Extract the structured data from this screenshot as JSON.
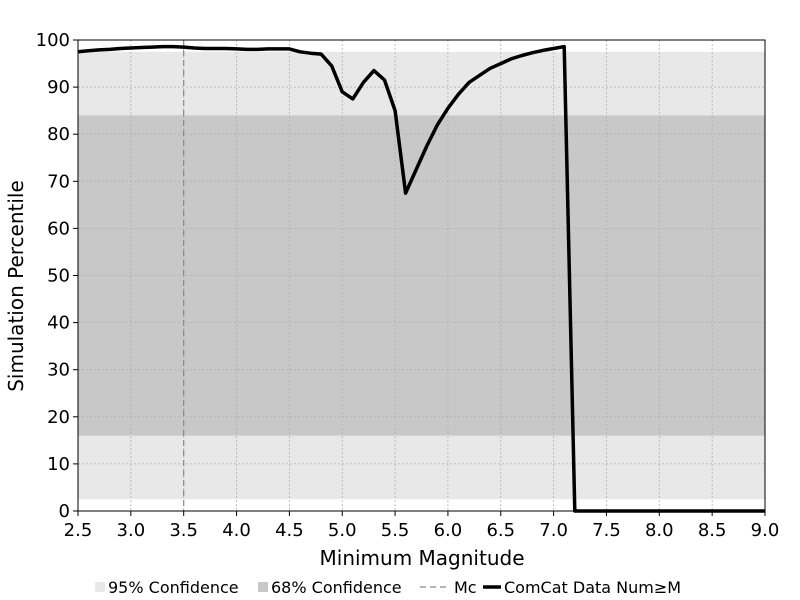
{
  "chart_data": {
    "type": "line",
    "title": "",
    "xlabel": "Minimum Magnitude",
    "ylabel": "Simulation Percentile",
    "xlim": [
      2.5,
      9.0
    ],
    "ylim": [
      0,
      100
    ],
    "xticks": [
      2.5,
      3.0,
      3.5,
      4.0,
      4.5,
      5.0,
      5.5,
      6.0,
      6.5,
      7.0,
      7.5,
      8.0,
      8.5,
      9.0
    ],
    "xtick_labels": [
      "2.5",
      "3.0",
      "3.5",
      "4.0",
      "4.5",
      "5.0",
      "5.5",
      "6.0",
      "6.5",
      "7.0",
      "7.5",
      "8.0",
      "8.5",
      "9.0"
    ],
    "yticks": [
      0,
      10,
      20,
      30,
      40,
      50,
      60,
      70,
      80,
      90,
      100
    ],
    "ytick_labels": [
      "0",
      "10",
      "20",
      "30",
      "40",
      "50",
      "60",
      "70",
      "80",
      "90",
      "100"
    ],
    "grid": true,
    "legend_position": "bottom",
    "bands": [
      {
        "name": "95% Confidence",
        "lower": 2.5,
        "upper": 97.5,
        "color": "#e8e8e8"
      },
      {
        "name": "68% Confidence",
        "lower": 16,
        "upper": 84,
        "color": "#c8c8c8"
      }
    ],
    "vlines": [
      {
        "name": "Mc",
        "x": 3.5,
        "color": "#888888",
        "style": "dashed"
      }
    ],
    "series": [
      {
        "name": "ComCat Data Num≥M",
        "color": "#000000",
        "x": [
          2.5,
          2.6,
          2.7,
          2.8,
          2.9,
          3.0,
          3.1,
          3.2,
          3.3,
          3.4,
          3.5,
          3.6,
          3.7,
          3.8,
          3.9,
          4.0,
          4.1,
          4.2,
          4.3,
          4.4,
          4.5,
          4.6,
          4.7,
          4.8,
          4.9,
          5.0,
          5.1,
          5.2,
          5.3,
          5.4,
          5.5,
          5.6,
          5.7,
          5.8,
          5.9,
          6.0,
          6.1,
          6.2,
          6.3,
          6.4,
          6.5,
          6.6,
          6.7,
          6.8,
          6.9,
          7.0,
          7.1,
          7.2,
          7.3,
          7.5,
          8.0,
          8.5,
          9.0
        ],
        "y": [
          97.5,
          97.7,
          97.9,
          98.0,
          98.2,
          98.3,
          98.4,
          98.5,
          98.6,
          98.6,
          98.5,
          98.3,
          98.2,
          98.2,
          98.2,
          98.1,
          98.0,
          98.0,
          98.1,
          98.1,
          98.1,
          97.5,
          97.2,
          97.0,
          94.5,
          89.0,
          87.5,
          91.0,
          93.5,
          91.5,
          85.0,
          67.5,
          72.5,
          77.5,
          82.0,
          85.5,
          88.5,
          91.0,
          92.5,
          94.0,
          95.0,
          96.0,
          96.7,
          97.3,
          97.8,
          98.2,
          98.6,
          0.0,
          0.0,
          0.0,
          0.0,
          0.0,
          0.0
        ]
      }
    ]
  },
  "legend": {
    "items": [
      {
        "label": "95% Confidence",
        "kind": "patch",
        "color": "#e8e8e8"
      },
      {
        "label": "68% Confidence",
        "kind": "patch",
        "color": "#c8c8c8"
      },
      {
        "label": "Mc",
        "kind": "dashed",
        "color": "#888888"
      },
      {
        "label": "ComCat Data Num≥M",
        "kind": "line",
        "color": "#000000"
      }
    ]
  }
}
